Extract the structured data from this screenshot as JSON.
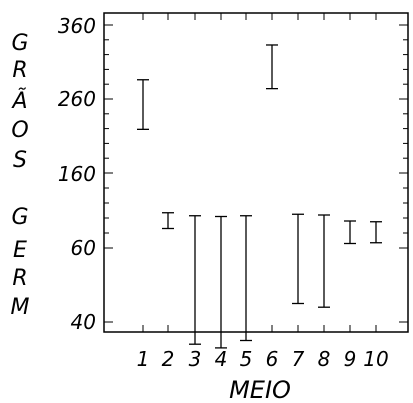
{
  "chart_data": {
    "type": "errorbar",
    "ylabel_chars": [
      "G",
      "R",
      "Ã",
      "O",
      "S",
      "G",
      "E",
      "R",
      "M"
    ],
    "xlabel": "MEIO",
    "categories": [
      "1",
      "2",
      "3",
      "4",
      "5",
      "6",
      "7",
      "8",
      "9",
      "10"
    ],
    "y_ticks_major": [
      40,
      60,
      160,
      260,
      360
    ],
    "y_tick_labels": [
      "40",
      "60",
      "160",
      "260",
      "360"
    ],
    "intervals": [
      {
        "x": "1",
        "low": 219,
        "high": 286
      },
      {
        "x": "2",
        "low": 86,
        "high": 107
      },
      {
        "x": "3",
        "low": 34,
        "high": 103
      },
      {
        "x": "4",
        "low": 33,
        "high": 102
      },
      {
        "x": "5",
        "low": 35,
        "high": 103
      },
      {
        "x": "6",
        "low": 274,
        "high": 333
      },
      {
        "x": "7",
        "low": 45,
        "high": 105
      },
      {
        "x": "8",
        "low": 44,
        "high": 104
      },
      {
        "x": "9",
        "low": 66,
        "high": 96
      },
      {
        "x": "10",
        "low": 67,
        "high": 95
      }
    ],
    "grid": false
  }
}
